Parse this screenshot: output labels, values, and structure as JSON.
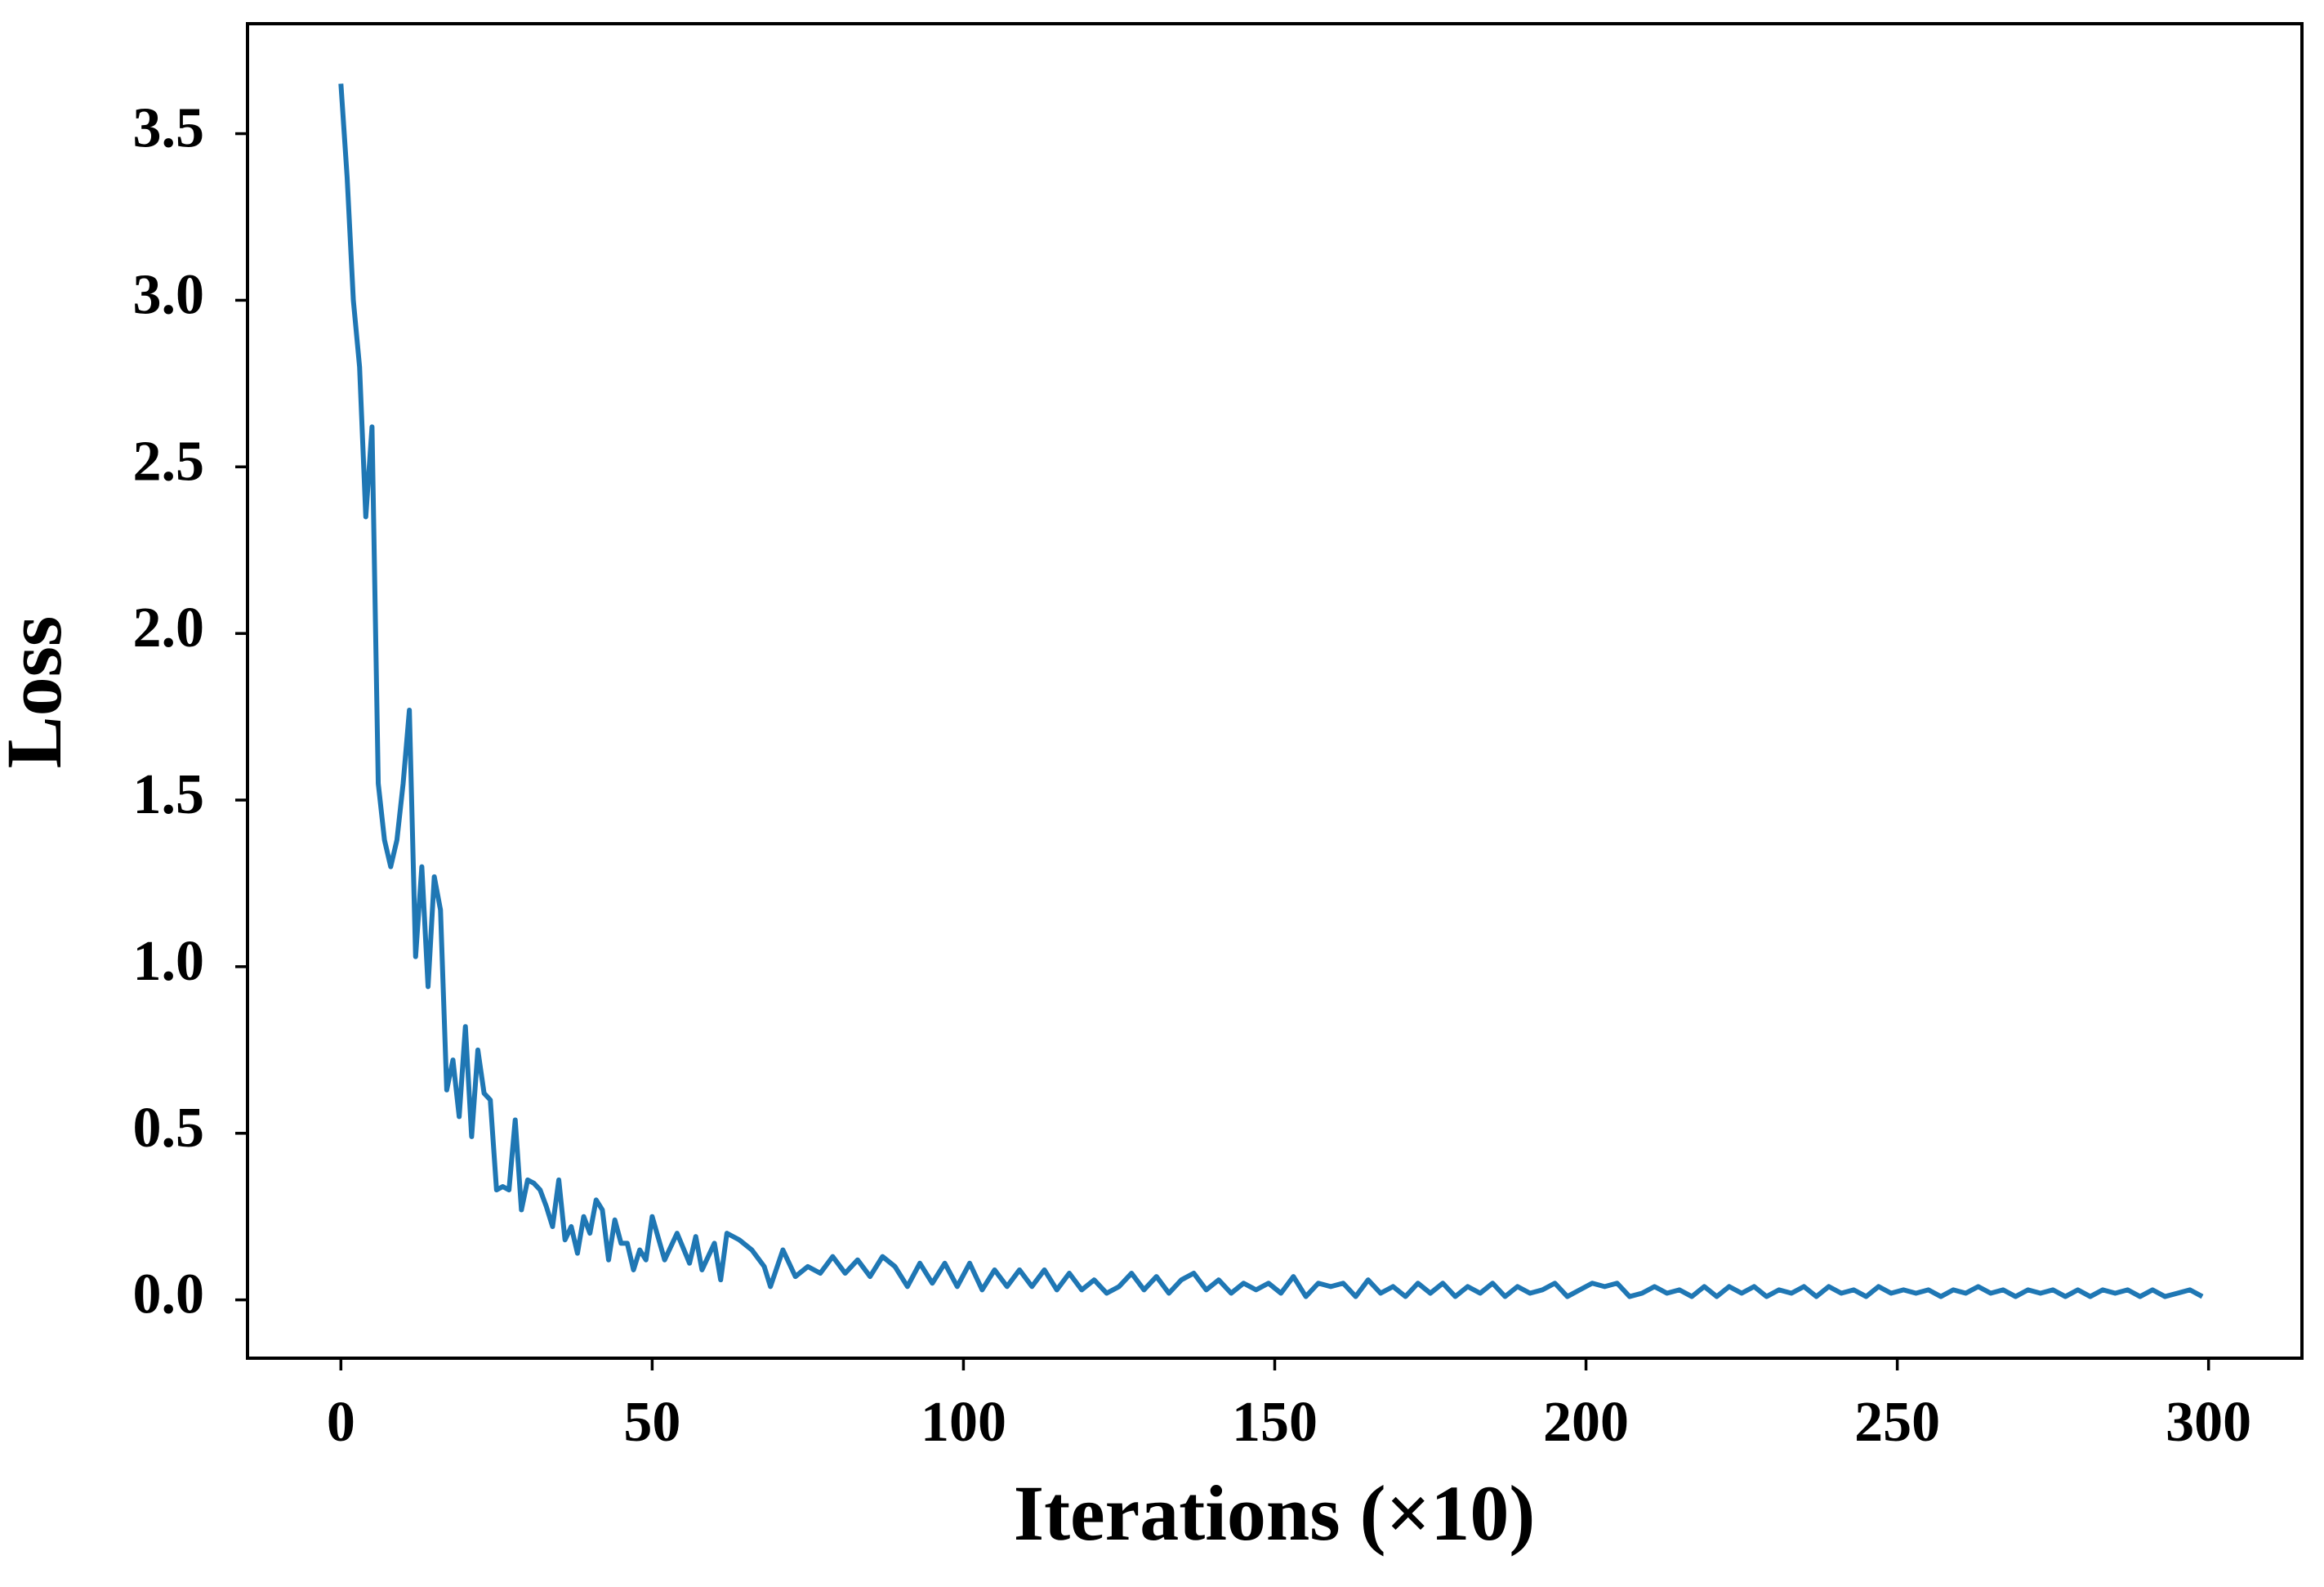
{
  "chart_data": {
    "type": "line",
    "x_label": "Iterations (×10)",
    "y_label": "Loss",
    "color": "#1f77b4",
    "xlim": [
      -15,
      315
    ],
    "ylim": [
      -0.175,
      3.83
    ],
    "xticks": [
      0,
      50,
      100,
      150,
      200,
      250,
      300
    ],
    "yticks": [
      {
        "value": 0,
        "label": "0.0"
      },
      0.5,
      {
        "value": 1,
        "label": "1.0"
      },
      1.5,
      {
        "value": 2,
        "label": "2.0"
      },
      2.5,
      {
        "value": 3,
        "label": "3.0"
      },
      3.5
    ],
    "grid": false,
    "x": [
      0,
      1,
      2,
      3,
      4,
      5,
      6,
      7,
      8,
      9,
      10,
      11,
      12,
      13,
      14,
      15,
      16,
      17,
      18,
      19,
      20,
      21,
      22,
      23,
      24,
      25,
      26,
      27,
      28,
      29,
      30,
      31,
      32,
      33,
      34,
      35,
      36,
      37,
      38,
      39,
      40,
      41,
      42,
      43,
      44,
      45,
      46,
      47,
      48,
      49,
      50,
      52,
      54,
      56,
      57,
      58,
      60,
      61,
      62,
      64,
      66,
      68,
      69,
      71,
      73,
      75,
      77,
      79,
      81,
      83,
      85,
      87,
      89,
      91,
      93,
      95,
      97,
      99,
      101,
      103,
      105,
      107,
      109,
      111,
      113,
      115,
      117,
      119,
      121,
      123,
      125,
      127,
      129,
      131,
      133,
      135,
      137,
      139,
      141,
      143,
      145,
      147,
      149,
      151,
      153,
      155,
      157,
      159,
      161,
      163,
      165,
      167,
      169,
      171,
      173,
      175,
      177,
      179,
      181,
      183,
      185,
      187,
      189,
      191,
      193,
      195,
      197,
      199,
      201,
      203,
      205,
      207,
      209,
      211,
      213,
      215,
      217,
      219,
      221,
      223,
      225,
      227,
      229,
      231,
      233,
      235,
      237,
      239,
      241,
      243,
      245,
      247,
      249,
      251,
      253,
      255,
      257,
      259,
      261,
      263,
      265,
      267,
      269,
      271,
      273,
      275,
      277,
      279,
      281,
      283,
      285,
      287,
      289,
      291,
      293,
      295,
      297,
      299
    ],
    "values": [
      3.65,
      3.37,
      3.0,
      2.8,
      2.35,
      2.62,
      1.55,
      1.38,
      1.3,
      1.38,
      1.55,
      1.77,
      1.03,
      1.3,
      0.94,
      1.27,
      1.17,
      0.63,
      0.72,
      0.55,
      0.82,
      0.49,
      0.75,
      0.62,
      0.6,
      0.33,
      0.34,
      0.33,
      0.54,
      0.27,
      0.36,
      0.35,
      0.33,
      0.28,
      0.22,
      0.36,
      0.18,
      0.22,
      0.14,
      0.25,
      0.2,
      0.3,
      0.27,
      0.12,
      0.24,
      0.17,
      0.17,
      0.09,
      0.15,
      0.12,
      0.25,
      0.12,
      0.2,
      0.11,
      0.19,
      0.09,
      0.17,
      0.06,
      0.2,
      0.18,
      0.15,
      0.1,
      0.04,
      0.15,
      0.07,
      0.1,
      0.08,
      0.13,
      0.08,
      0.12,
      0.07,
      0.13,
      0.1,
      0.04,
      0.11,
      0.05,
      0.11,
      0.04,
      0.11,
      0.03,
      0.09,
      0.04,
      0.09,
      0.04,
      0.09,
      0.03,
      0.08,
      0.03,
      0.06,
      0.02,
      0.04,
      0.08,
      0.03,
      0.07,
      0.02,
      0.06,
      0.08,
      0.03,
      0.06,
      0.02,
      0.05,
      0.03,
      0.05,
      0.02,
      0.07,
      0.01,
      0.05,
      0.04,
      0.05,
      0.01,
      0.06,
      0.02,
      0.04,
      0.01,
      0.05,
      0.02,
      0.05,
      0.01,
      0.04,
      0.02,
      0.05,
      0.01,
      0.04,
      0.02,
      0.03,
      0.05,
      0.01,
      0.03,
      0.05,
      0.04,
      0.05,
      0.01,
      0.02,
      0.04,
      0.02,
      0.03,
      0.01,
      0.04,
      0.01,
      0.04,
      0.02,
      0.04,
      0.01,
      0.03,
      0.02,
      0.04,
      0.01,
      0.04,
      0.02,
      0.03,
      0.01,
      0.04,
      0.02,
      0.03,
      0.02,
      0.03,
      0.01,
      0.03,
      0.02,
      0.04,
      0.02,
      0.03,
      0.01,
      0.03,
      0.02,
      0.03,
      0.01,
      0.03,
      0.01,
      0.03,
      0.02,
      0.03,
      0.01,
      0.03,
      0.01,
      0.02,
      0.03,
      0.01
    ]
  }
}
